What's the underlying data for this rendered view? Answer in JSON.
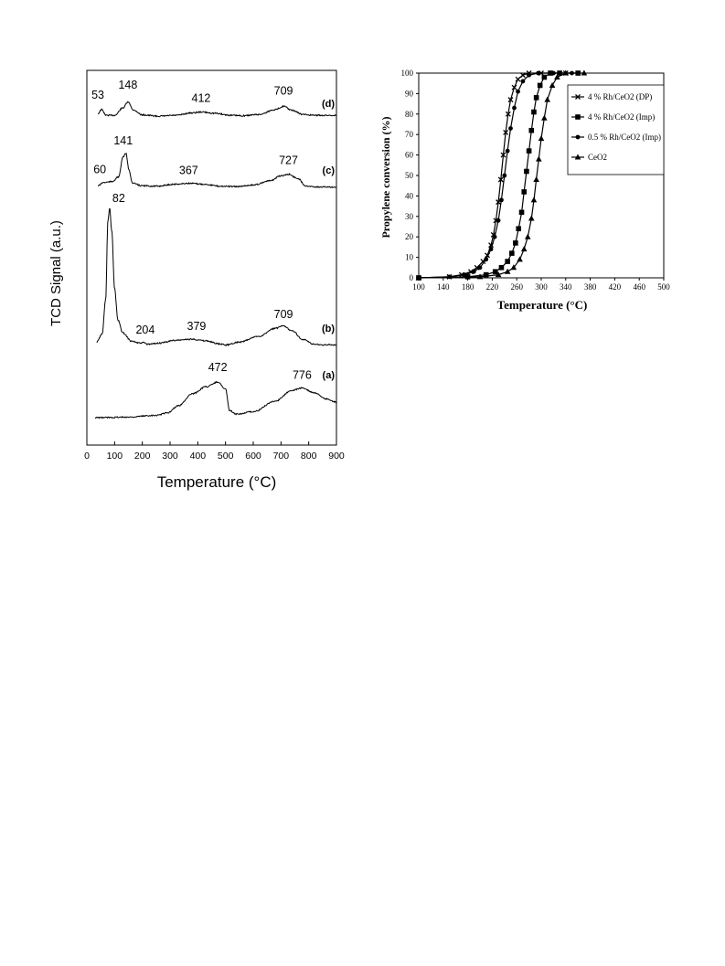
{
  "chart_data": [
    {
      "type": "line",
      "xlabel": "Temperature (°C)",
      "ylabel": "TCD Signal (a.u.)",
      "xlim": [
        0,
        900
      ],
      "xticks": [
        "0",
        "100",
        "200",
        "300",
        "400",
        "500",
        "600",
        "700",
        "800",
        "900"
      ],
      "yticks": [],
      "grid": false,
      "series": [
        {
          "name": "(d)",
          "peak_labels": [
            "53",
            "148",
            "412",
            "709"
          ],
          "peaks_x": [
            53,
            148,
            412,
            709
          ],
          "points": [
            [
              40,
              0.4
            ],
            [
              53,
              0.9
            ],
            [
              70,
              0.2
            ],
            [
              100,
              0.2
            ],
            [
              130,
              1.1
            ],
            [
              148,
              1.8
            ],
            [
              170,
              0.8
            ],
            [
              200,
              0.25
            ],
            [
              260,
              0.1
            ],
            [
              320,
              0.2
            ],
            [
              380,
              0.5
            ],
            [
              412,
              0.6
            ],
            [
              460,
              0.45
            ],
            [
              520,
              0.2
            ],
            [
              560,
              0.15
            ],
            [
              620,
              0.3
            ],
            [
              680,
              0.9
            ],
            [
              709,
              1.3
            ],
            [
              740,
              0.8
            ],
            [
              780,
              0.3
            ],
            [
              820,
              0.2
            ],
            [
              880,
              0.2
            ],
            [
              900,
              0.2
            ]
          ]
        },
        {
          "name": "(c)",
          "peak_labels": [
            "60",
            "141",
            "367",
            "727"
          ],
          "peaks_x": [
            60,
            141,
            367,
            727
          ],
          "points": [
            [
              40,
              0.3
            ],
            [
              60,
              0.7
            ],
            [
              90,
              0.8
            ],
            [
              115,
              1.4
            ],
            [
              130,
              3.8
            ],
            [
              141,
              4.2
            ],
            [
              152,
              2.2
            ],
            [
              165,
              0.6
            ],
            [
              200,
              0.3
            ],
            [
              250,
              0.25
            ],
            [
              320,
              0.5
            ],
            [
              367,
              0.6
            ],
            [
              420,
              0.5
            ],
            [
              480,
              0.25
            ],
            [
              540,
              0.2
            ],
            [
              600,
              0.4
            ],
            [
              660,
              0.9
            ],
            [
              700,
              1.5
            ],
            [
              727,
              1.7
            ],
            [
              760,
              1.2
            ],
            [
              790,
              0.3
            ],
            [
              830,
              0.15
            ],
            [
              880,
              0.15
            ],
            [
              900,
              0.15
            ]
          ]
        },
        {
          "name": "(b)",
          "peak_labels": [
            "82",
            "204",
            "379",
            "709"
          ],
          "peaks_x": [
            82,
            204,
            379,
            709
          ],
          "points": [
            [
              35,
              0.3
            ],
            [
              55,
              1.0
            ],
            [
              68,
              4.0
            ],
            [
              76,
              11.0
            ],
            [
              82,
              12.0
            ],
            [
              90,
              10.0
            ],
            [
              100,
              5.0
            ],
            [
              112,
              2.2
            ],
            [
              130,
              1.1
            ],
            [
              160,
              0.4
            ],
            [
              190,
              0.2
            ],
            [
              204,
              0.25
            ],
            [
              220,
              0.1
            ],
            [
              260,
              0.2
            ],
            [
              320,
              0.45
            ],
            [
              379,
              0.55
            ],
            [
              430,
              0.4
            ],
            [
              480,
              0.12
            ],
            [
              500,
              0.05
            ],
            [
              550,
              0.3
            ],
            [
              620,
              0.8
            ],
            [
              680,
              1.5
            ],
            [
              709,
              1.7
            ],
            [
              740,
              1.3
            ],
            [
              780,
              0.5
            ],
            [
              820,
              0.1
            ],
            [
              860,
              0.05
            ],
            [
              900,
              0.05
            ]
          ]
        },
        {
          "name": "(a)",
          "peak_labels": [
            "472",
            "776"
          ],
          "peaks_x": [
            472,
            776
          ],
          "points": [
            [
              30,
              0
            ],
            [
              150,
              0.05
            ],
            [
              250,
              0.2
            ],
            [
              290,
              0.4
            ],
            [
              330,
              1.0
            ],
            [
              380,
              2.0
            ],
            [
              430,
              2.6
            ],
            [
              472,
              3.0
            ],
            [
              500,
              2.4
            ],
            [
              515,
              0.6
            ],
            [
              540,
              0.3
            ],
            [
              600,
              0.5
            ],
            [
              680,
              1.4
            ],
            [
              740,
              2.3
            ],
            [
              776,
              2.5
            ],
            [
              820,
              2.1
            ],
            [
              860,
              1.6
            ],
            [
              900,
              1.3
            ]
          ]
        }
      ]
    },
    {
      "type": "line",
      "xlabel": "Temperature (°C)",
      "ylabel": "Propylene conversion (%)",
      "xlim": [
        100,
        500
      ],
      "ylim": [
        0,
        100
      ],
      "xticks": [
        "100",
        "140",
        "180",
        "220",
        "260",
        "300",
        "340",
        "380",
        "420",
        "460",
        "500"
      ],
      "yticks": [
        "0",
        "10",
        "20",
        "30",
        "40",
        "50",
        "60",
        "70",
        "80",
        "90",
        "100"
      ],
      "grid": false,
      "legend_position": "right",
      "series": [
        {
          "name": "4 % Rh/CeO2 (DP)",
          "marker": "x",
          "x": [
            100,
            150,
            170,
            185,
            195,
            205,
            212,
            218,
            222,
            226,
            230,
            234,
            238,
            242,
            246,
            250,
            256,
            262,
            270,
            280,
            300,
            340
          ],
          "y": [
            0,
            0.5,
            1.5,
            3,
            5,
            8,
            11,
            16,
            21,
            28,
            37,
            48,
            60,
            71,
            80,
            87,
            93,
            97,
            99,
            100,
            100,
            100
          ]
        },
        {
          "name": "4 % Rh/CeO2 (Imp)",
          "marker": "square",
          "x": [
            100,
            180,
            210,
            225,
            235,
            245,
            252,
            258,
            263,
            268,
            272,
            276,
            280,
            284,
            288,
            292,
            298,
            305,
            315,
            330,
            360
          ],
          "y": [
            0,
            0.5,
            1.5,
            3,
            5,
            8,
            12,
            17,
            24,
            32,
            42,
            52,
            62,
            72,
            81,
            88,
            94,
            98,
            100,
            100,
            100
          ]
        },
        {
          "name": "0.5 % Rh/CeO2 (Imp)",
          "marker": "circle",
          "x": [
            100,
            150,
            175,
            190,
            200,
            210,
            218,
            224,
            230,
            235,
            240,
            245,
            250,
            256,
            262,
            270,
            280,
            295,
            320,
            350
          ],
          "y": [
            0,
            0.5,
            1.5,
            3,
            5,
            9,
            14,
            20,
            28,
            38,
            50,
            62,
            73,
            83,
            91,
            96,
            99,
            100,
            100,
            100
          ]
        },
        {
          "name": "CeO2",
          "marker": "triangle",
          "x": [
            100,
            200,
            230,
            245,
            255,
            265,
            272,
            278,
            284,
            288,
            292,
            296,
            300,
            305,
            310,
            318,
            326,
            340,
            370
          ],
          "y": [
            0,
            0.5,
            1.5,
            3,
            5,
            9,
            14,
            20,
            29,
            38,
            48,
            58,
            68,
            78,
            87,
            94,
            98,
            100,
            100
          ]
        }
      ]
    }
  ]
}
